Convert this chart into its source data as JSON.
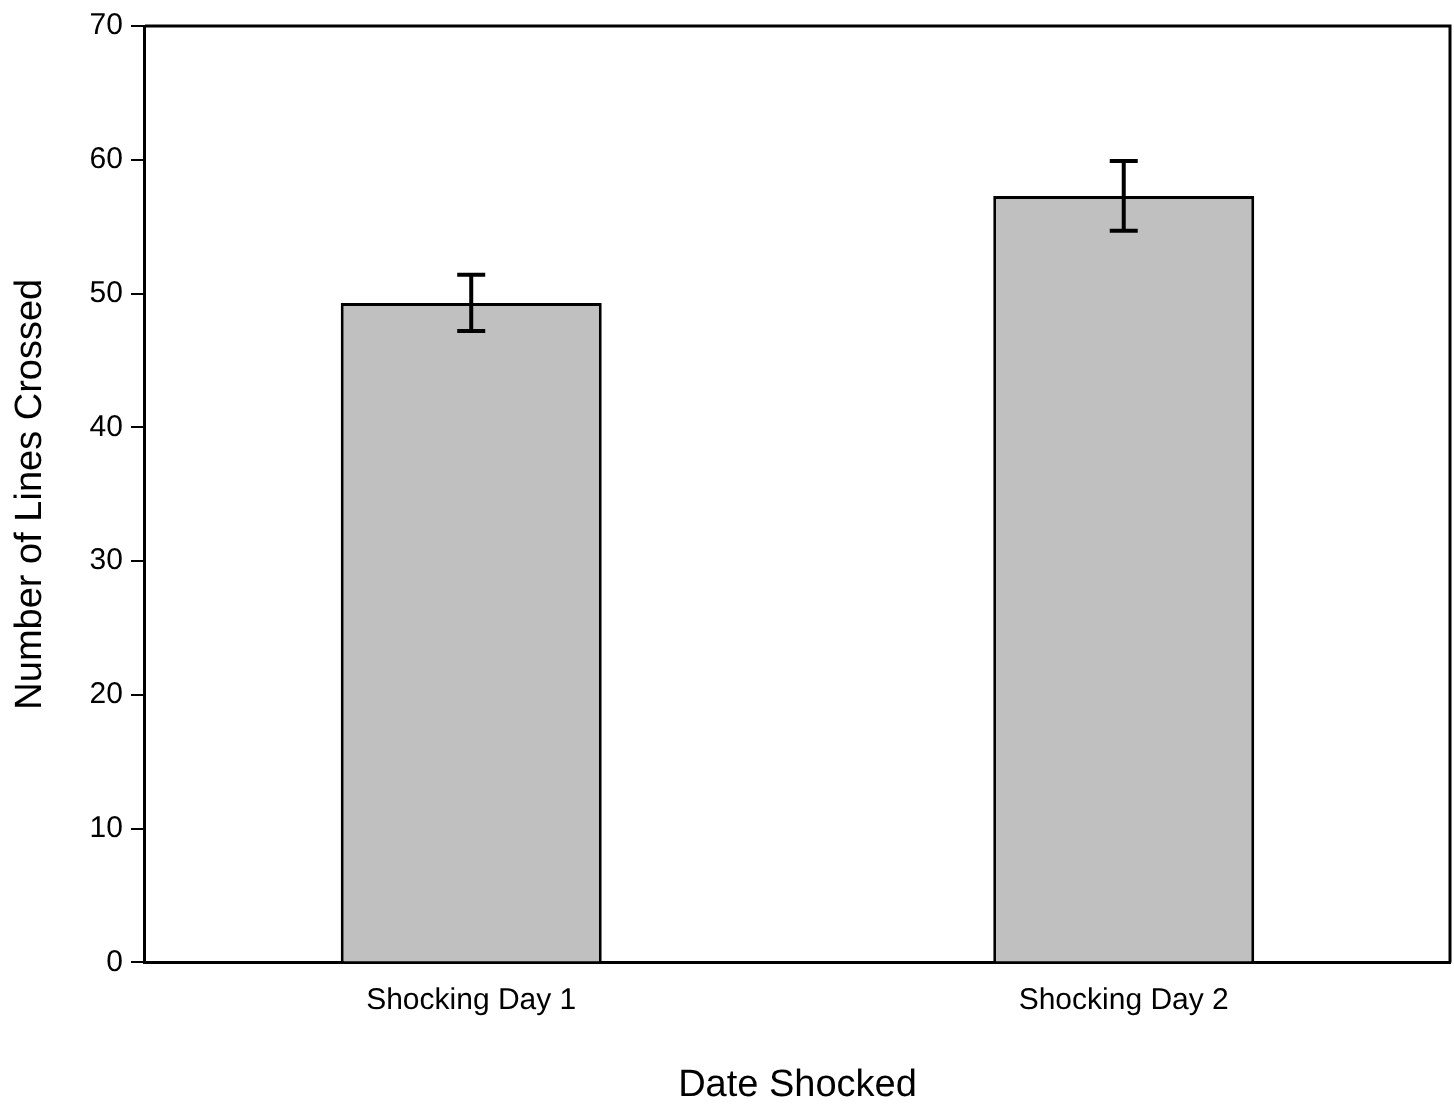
{
  "chart_data": {
    "type": "bar",
    "xlabel": "Date Shocked",
    "ylabel": "Number of Lines Crossed",
    "categories": [
      "Shocking Day 1",
      "Shocking Day 2"
    ],
    "values": [
      49.3,
      57.3
    ],
    "errors": [
      2.1,
      2.6
    ],
    "color": "#c0c0c0",
    "ylim": [
      0,
      70
    ],
    "yticks": [
      0,
      10,
      20,
      30,
      40,
      50,
      60,
      70
    ],
    "grid": false,
    "legend": false
  }
}
